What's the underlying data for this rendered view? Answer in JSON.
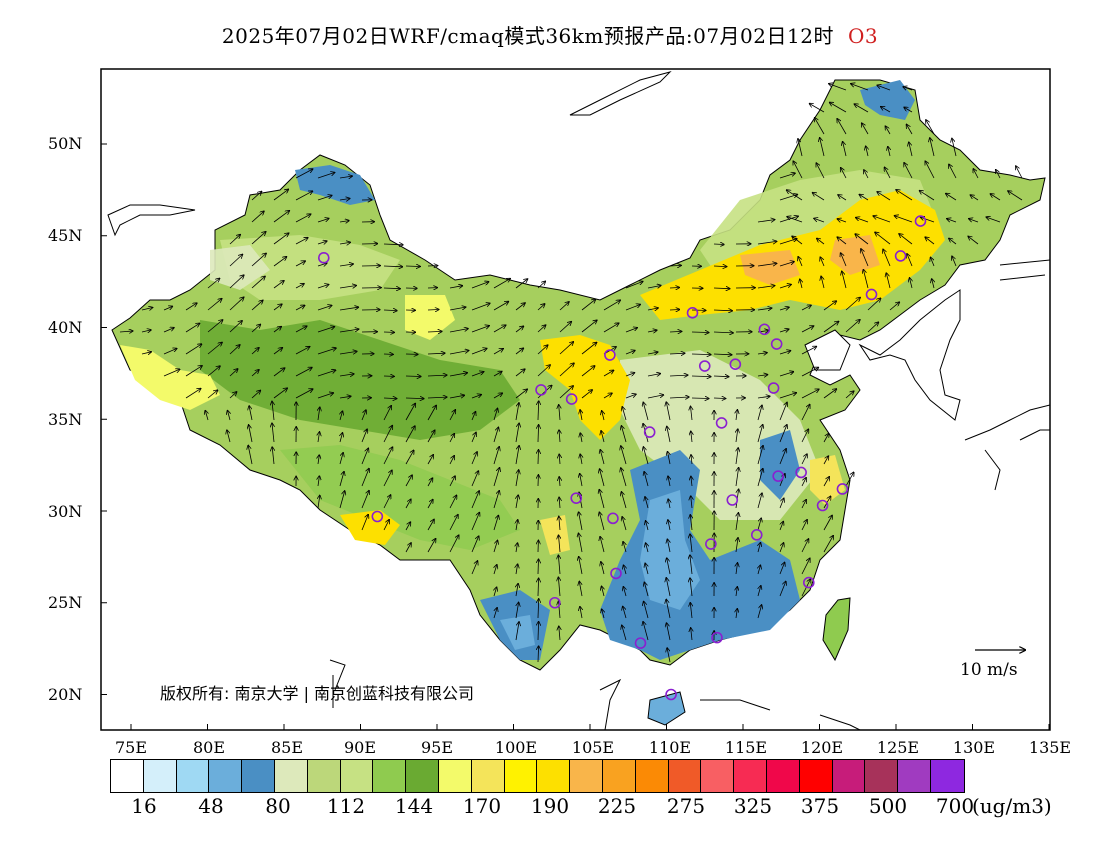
{
  "title": {
    "text": "2025年07月02日WRF/cmaq模式36km预报产品:07月02日12时",
    "species": "O3",
    "species_color": "#d02020"
  },
  "map": {
    "lon_labels": [
      "75E",
      "80E",
      "85E",
      "90E",
      "95E",
      "100E",
      "105E",
      "110E",
      "115E",
      "120E",
      "125E",
      "130E",
      "135E"
    ],
    "lat_labels": [
      "50N",
      "45N",
      "40N",
      "35N",
      "30N",
      "25N",
      "20N"
    ],
    "copyright": "版权所有: 南京大学 | 南京创蓝科技有限公司",
    "wind_scale_label": "10 m/s"
  },
  "legend": {
    "colors": [
      "#ffffff",
      "#d4effa",
      "#9fd9f3",
      "#6baedb",
      "#4a8fc4",
      "#dde9bb",
      "#bcd77a",
      "#c6e183",
      "#8fcb4f",
      "#6aaa32",
      "#f3fa6a",
      "#f4e45a",
      "#fff200",
      "#fde000",
      "#f9b54a",
      "#f9a220",
      "#fb8a05",
      "#f05a28",
      "#f85f63",
      "#f72b53",
      "#f0074a",
      "#ff0000",
      "#c71c7a",
      "#a7325a",
      "#a03bc0",
      "#8e28e0"
    ],
    "labels": [
      "16",
      "48",
      "80",
      "112",
      "144",
      "170",
      "190",
      "225",
      "275",
      "325",
      "375",
      "500",
      "700"
    ],
    "unit": "(ug/m3)"
  },
  "stations": [
    {
      "lon": 87.6,
      "lat": 43.8
    },
    {
      "lon": 126.6,
      "lat": 45.8
    },
    {
      "lon": 125.3,
      "lat": 43.9
    },
    {
      "lon": 123.4,
      "lat": 41.8
    },
    {
      "lon": 111.7,
      "lat": 40.8
    },
    {
      "lon": 116.4,
      "lat": 39.9
    },
    {
      "lon": 117.2,
      "lat": 39.1
    },
    {
      "lon": 112.5,
      "lat": 37.9
    },
    {
      "lon": 114.5,
      "lat": 38.0
    },
    {
      "lon": 106.3,
      "lat": 38.5
    },
    {
      "lon": 117.0,
      "lat": 36.7
    },
    {
      "lon": 101.8,
      "lat": 36.6
    },
    {
      "lon": 103.8,
      "lat": 36.1
    },
    {
      "lon": 113.6,
      "lat": 34.8
    },
    {
      "lon": 108.9,
      "lat": 34.3
    },
    {
      "lon": 117.3,
      "lat": 31.9
    },
    {
      "lon": 118.8,
      "lat": 32.1
    },
    {
      "lon": 121.5,
      "lat": 31.2
    },
    {
      "lon": 120.2,
      "lat": 30.3
    },
    {
      "lon": 114.3,
      "lat": 30.6
    },
    {
      "lon": 104.1,
      "lat": 30.7
    },
    {
      "lon": 106.5,
      "lat": 29.6
    },
    {
      "lon": 91.1,
      "lat": 29.7
    },
    {
      "lon": 112.9,
      "lat": 28.2
    },
    {
      "lon": 115.9,
      "lat": 28.7
    },
    {
      "lon": 106.7,
      "lat": 26.6
    },
    {
      "lon": 119.3,
      "lat": 26.1
    },
    {
      "lon": 102.7,
      "lat": 25.0
    },
    {
      "lon": 108.3,
      "lat": 22.8
    },
    {
      "lon": 113.3,
      "lat": 23.1
    },
    {
      "lon": 110.3,
      "lat": 20.0
    }
  ]
}
